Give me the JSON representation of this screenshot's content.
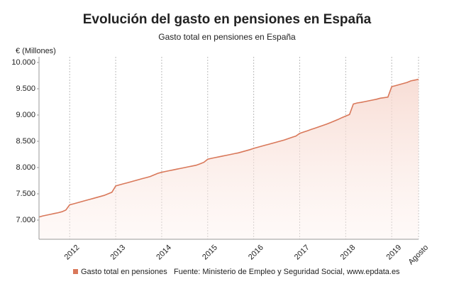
{
  "chart_data": {
    "type": "line",
    "title": "Evolución del gasto en pensiones en España",
    "subtitle": "Gasto total en pensiones en España",
    "y_axis_label": "€ (Millones)",
    "source": "Fuente: Ministerio de Empleo y Seguridad Social, www.epdata.es",
    "categories": [
      null,
      null,
      null,
      null,
      null,
      null,
      null,
      null,
      "2012",
      null,
      null,
      null,
      null,
      null,
      null,
      null,
      null,
      null,
      null,
      null,
      "2013",
      null,
      null,
      null,
      null,
      null,
      null,
      null,
      null,
      null,
      null,
      null,
      "2014",
      null,
      null,
      null,
      null,
      null,
      null,
      null,
      null,
      null,
      null,
      null,
      "2015",
      null,
      null,
      null,
      null,
      null,
      null,
      null,
      null,
      null,
      null,
      null,
      "2016",
      null,
      null,
      null,
      null,
      null,
      null,
      null,
      null,
      null,
      null,
      null,
      "2017",
      null,
      null,
      null,
      null,
      null,
      null,
      null,
      null,
      null,
      null,
      null,
      "2018",
      null,
      null,
      null,
      null,
      null,
      null,
      null,
      null,
      null,
      null,
      null,
      "2019",
      null,
      null,
      null,
      null,
      null,
      null,
      "Agosto"
    ],
    "series": [
      {
        "name": "Gasto total en pensiones",
        "color": "#d9785a",
        "values": [
          7060,
          7080,
          7095,
          7110,
          7125,
          7140,
          7160,
          7190,
          7290,
          7310,
          7330,
          7350,
          7370,
          7390,
          7410,
          7430,
          7450,
          7470,
          7500,
          7530,
          7650,
          7670,
          7690,
          7710,
          7730,
          7750,
          7770,
          7790,
          7810,
          7830,
          7860,
          7890,
          7910,
          7925,
          7940,
          7955,
          7970,
          7985,
          8000,
          8015,
          8030,
          8045,
          8070,
          8100,
          8160,
          8175,
          8190,
          8205,
          8220,
          8235,
          8250,
          8265,
          8280,
          8300,
          8320,
          8340,
          8365,
          8385,
          8405,
          8425,
          8445,
          8465,
          8485,
          8505,
          8525,
          8550,
          8575,
          8600,
          8650,
          8675,
          8700,
          8725,
          8750,
          8775,
          8800,
          8825,
          8855,
          8885,
          8915,
          8950,
          8980,
          9010,
          9210,
          9230,
          9240,
          9255,
          9270,
          9285,
          9300,
          9320,
          9330,
          9340,
          9540,
          9560,
          9580,
          9600,
          9620,
          9650,
          9665,
          9680
        ]
      }
    ],
    "ylim": [
      6635,
      10108
    ],
    "yticks": [
      {
        "value": 7000,
        "label": "7.000"
      },
      {
        "value": 7500,
        "label": "7.500"
      },
      {
        "value": 8000,
        "label": "8.000"
      },
      {
        "value": 8500,
        "label": "8.500"
      },
      {
        "value": 9000,
        "label": "9.000"
      },
      {
        "value": 9500,
        "label": "9.500"
      },
      {
        "value": 10000,
        "label": "10.000"
      }
    ],
    "grid": true,
    "legend_position": "bottom"
  }
}
